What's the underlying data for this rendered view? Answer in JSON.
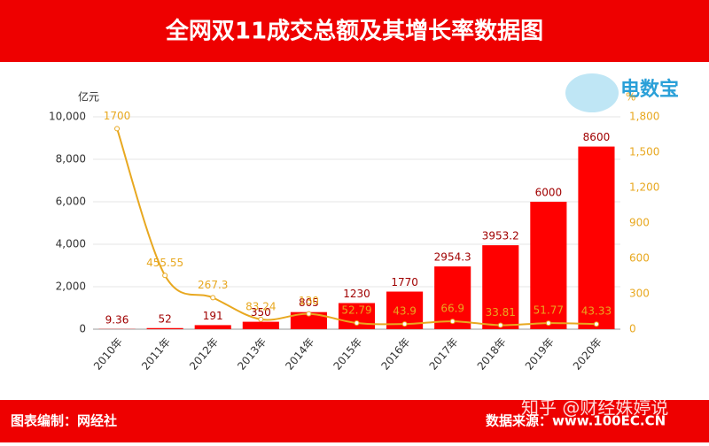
{
  "header": {
    "title": "全网双11成交总额及其增长率数据图"
  },
  "logo": {
    "name": "电数宝"
  },
  "chart_data": {
    "type": "bar-line",
    "y_label": "亿元",
    "y2_label": "%",
    "categories": [
      "2010年",
      "2011年",
      "2012年",
      "2013年",
      "2014年",
      "2015年",
      "2016年",
      "2017年",
      "2018年",
      "2019年",
      "2020年"
    ],
    "series": [
      {
        "name": "成交总额",
        "type": "bar",
        "color": "#ff0000",
        "label_color": "#a00000",
        "values": [
          9.36,
          52,
          191,
          350,
          805,
          1230,
          1770,
          2954.3,
          3953.2,
          6000,
          8600
        ]
      },
      {
        "name": "增长率",
        "type": "line",
        "axis": "y2",
        "color": "#e8a820",
        "values": [
          1700,
          455.55,
          267.3,
          83.24,
          130,
          52.79,
          43.9,
          66.9,
          33.81,
          51.77,
          43.33
        ]
      }
    ],
    "ylim": [
      0,
      10000
    ],
    "yticks": [
      0,
      {
        "value": 2000,
        "label": "2,000"
      },
      {
        "value": 4000,
        "label": "4,000"
      },
      {
        "value": 6000,
        "label": "6,000"
      },
      {
        "value": 8000,
        "label": "8,000"
      },
      {
        "value": 10000,
        "label": "10,000"
      }
    ],
    "y2lim": [
      0,
      1800
    ],
    "y2ticks": [
      0,
      300,
      600,
      900,
      {
        "value": 1200,
        "label": "1,200"
      },
      {
        "value": 1500,
        "label": "1,500"
      },
      {
        "value": 1800,
        "label": "1,800"
      }
    ],
    "grid": true
  },
  "footer": {
    "left": "图表编制：网经社",
    "right": "数据来源：www.100EC.CN",
    "watermark": "知乎 @财经姝婷说"
  }
}
